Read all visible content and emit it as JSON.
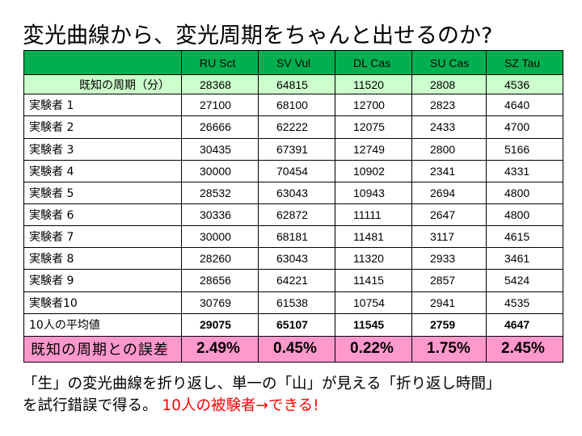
{
  "title": "変光曲線から、変光周期をちゃんと出せるのか?",
  "table": {
    "columns": [
      "RU Sct",
      "SV Vul",
      "DL Cas",
      "SU Cas",
      "SZ Tau"
    ],
    "known": {
      "label": "既知の周期（分）",
      "values": [
        "28368",
        "64815",
        "11520",
        "2808",
        "4536"
      ]
    },
    "rows": [
      {
        "label": "実験者  1",
        "values": [
          "27100",
          "68100",
          "12700",
          "2823",
          "4640"
        ]
      },
      {
        "label": "実験者  2",
        "values": [
          "26666",
          "62222",
          "12075",
          "2433",
          "4700"
        ]
      },
      {
        "label": "実験者  3",
        "values": [
          "30435",
          "67391",
          "12749",
          "2800",
          "5166"
        ]
      },
      {
        "label": "実験者  4",
        "values": [
          "30000",
          "70454",
          "10902",
          "2341",
          "4331"
        ]
      },
      {
        "label": "実験者  5",
        "values": [
          "28532",
          "63043",
          "10943",
          "2694",
          "4800"
        ]
      },
      {
        "label": "実験者  6",
        "values": [
          "30336",
          "62872",
          "11111",
          "2647",
          "4800"
        ]
      },
      {
        "label": "実験者  7",
        "values": [
          "30000",
          "68181",
          "11481",
          "3117",
          "4615"
        ]
      },
      {
        "label": "実験者  8",
        "values": [
          "28260",
          "63043",
          "11320",
          "2933",
          "3461"
        ]
      },
      {
        "label": "実験者  9",
        "values": [
          "28656",
          "64221",
          "11415",
          "2857",
          "5424"
        ]
      },
      {
        "label": "実験者10",
        "values": [
          "30769",
          "61538",
          "10754",
          "2941",
          "4535"
        ]
      }
    ],
    "average": {
      "label": "10人の平均値",
      "values": [
        "29075",
        "65107",
        "11545",
        "2759",
        "4647"
      ]
    },
    "error": {
      "label": "既知の周期との誤差",
      "values": [
        "2.49%",
        "0.45%",
        "0.22%",
        "1.75%",
        "2.45%"
      ]
    }
  },
  "footer": {
    "line1": "「生」の変光曲線を折り返し、単一の「山」が見える「折り返し時間」",
    "line2_black": "を試行錯誤で得る。",
    "line2_red": "10人の被験者→できる!"
  },
  "colors": {
    "header_green": "#00b050",
    "known_row": "#ccffcc",
    "error_row": "#ff99cc",
    "highlight_red": "#ff0000"
  }
}
